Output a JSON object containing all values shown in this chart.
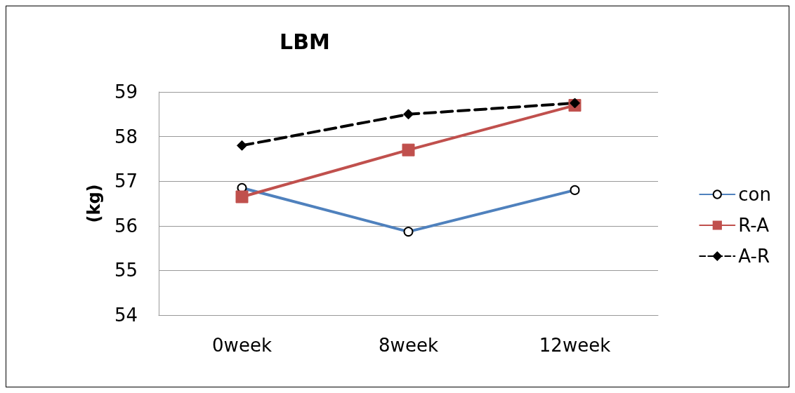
{
  "chart_data": {
    "type": "line",
    "title": "LBM",
    "ylabel": "(kg)",
    "categories": [
      "0week",
      "8week",
      "12week"
    ],
    "series": [
      {
        "name": "con",
        "color": "#4f81bd",
        "values": [
          56.85,
          55.87,
          56.8
        ],
        "marker": "circle",
        "line_style": "solid"
      },
      {
        "name": "R-A",
        "color": "#c0504d",
        "values": [
          56.65,
          57.7,
          58.7
        ],
        "marker": "square",
        "line_style": "solid"
      },
      {
        "name": "A-R",
        "color": "#000000",
        "values": [
          57.8,
          58.5,
          58.75
        ],
        "marker": "diamond",
        "line_style": "dashed"
      }
    ],
    "ylim": [
      54,
      59
    ],
    "yticks": [
      54,
      55,
      56,
      57,
      58,
      59
    ],
    "grid": "y",
    "legend": "right"
  }
}
